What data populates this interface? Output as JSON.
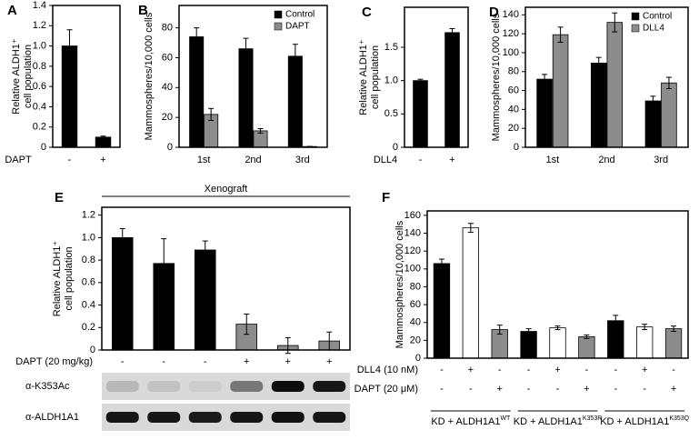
{
  "chart_data": [
    {
      "type": "bar",
      "panel": "A",
      "y_label": [
        "Relative ALDH1⁺",
        "cell population"
      ],
      "x_label": "DAPT",
      "categories": [
        "-",
        "+"
      ],
      "values": [
        1.0,
        0.1
      ],
      "errors": [
        0.16,
        0.01
      ],
      "color": "#000000",
      "ylim": [
        0,
        1.4
      ],
      "yticks": [
        0,
        0.2,
        0.4,
        0.6,
        0.8,
        {
          "value": 1,
          "label": "1.0"
        },
        1.2,
        1.4
      ]
    },
    {
      "type": "bar",
      "panel": "B",
      "y_label": [
        "Mammospheres/10,000 cells"
      ],
      "categories": [
        "1st",
        "2nd",
        "3rd"
      ],
      "series": [
        {
          "name": "Control",
          "color": "#000000",
          "values": [
            74,
            66,
            61
          ],
          "errors": [
            6,
            7,
            8
          ]
        },
        {
          "name": "DAPT",
          "color": "#8c8c8c",
          "values": [
            22,
            11,
            0.5
          ],
          "errors": [
            4,
            1.5,
            0
          ]
        }
      ],
      "ylim": [
        0,
        95
      ],
      "yticks": [
        0,
        20,
        40,
        60,
        80
      ],
      "legend": "top-right"
    },
    {
      "type": "bar",
      "panel": "C",
      "y_label": [
        "Relative ALDH1⁺",
        "cell population"
      ],
      "x_label": "DLL4",
      "categories": [
        "-",
        "+"
      ],
      "values": [
        1.0,
        1.72
      ],
      "errors": [
        0.02,
        0.06
      ],
      "color": "#000000",
      "ylim": [
        0,
        2.1
      ],
      "yticks": [
        0,
        0.5,
        {
          "value": 1,
          "label": "1.0"
        },
        1.5
      ]
    },
    {
      "type": "bar",
      "panel": "D",
      "y_label": [
        "Mammospheres/10,000 cells"
      ],
      "categories": [
        "1st",
        "2nd",
        "3rd"
      ],
      "series": [
        {
          "name": "Control",
          "color": "#000000",
          "values": [
            72,
            89,
            49
          ],
          "errors": [
            5,
            6,
            5
          ]
        },
        {
          "name": "DLL4",
          "color": "#8c8c8c",
          "values": [
            119,
            132,
            68
          ],
          "errors": [
            8,
            10,
            6
          ]
        }
      ],
      "ylim": [
        0,
        148
      ],
      "yticks": [
        0,
        20,
        40,
        60,
        80,
        100,
        120,
        140
      ],
      "legend": "top-left"
    },
    {
      "type": "bar",
      "panel": "E",
      "title": "Xenograft",
      "y_label": [
        "Relative ALDH1⁺",
        "cell population"
      ],
      "values": [
        1.0,
        0.77,
        0.89,
        0.23,
        0.04,
        0.08
      ],
      "errors": [
        0.08,
        0.22,
        0.08,
        0.09,
        0.07,
        0.08
      ],
      "colors": [
        "#000000",
        "#000000",
        "#000000",
        "#8c8c8c",
        "#8c8c8c",
        "#8c8c8c"
      ],
      "rows": [
        {
          "label": "DAPT (20 mg/kg)",
          "values": [
            "-",
            "-",
            "-",
            "+",
            "+",
            "+"
          ]
        }
      ],
      "blot_labels": [
        "α-K353Ac",
        "α-ALDH1A1"
      ],
      "ylim": [
        0,
        1.27
      ],
      "yticks": [
        0,
        0.2,
        0.4,
        0.6,
        0.8,
        {
          "value": 1,
          "label": "1.0"
        },
        1.2
      ]
    },
    {
      "type": "bar",
      "panel": "F",
      "y_label": [
        "Mammospheres/10,000 cells"
      ],
      "values": [
        106,
        146,
        32,
        30,
        34,
        24,
        42,
        35,
        33
      ],
      "errors": [
        5,
        5,
        5,
        3,
        2,
        2,
        6,
        3,
        3
      ],
      "colors": [
        "#000000",
        "#ffffff",
        "#8c8c8c",
        "#000000",
        "#ffffff",
        "#8c8c8c",
        "#000000",
        "#ffffff",
        "#8c8c8c"
      ],
      "rows": [
        {
          "label": "DLL4 (10 nM)",
          "values": [
            "-",
            "+",
            "-",
            "-",
            "+",
            "-",
            "-",
            "+",
            "-"
          ]
        },
        {
          "label": "DAPT (20 μM)",
          "values": [
            "-",
            "-",
            "+",
            "-",
            "-",
            "+",
            "-",
            "-",
            "+"
          ]
        }
      ],
      "groups": [
        {
          "label": "KD + ALDH1A1",
          "sup": "WT"
        },
        {
          "label": "KD + ALDH1A1",
          "sup": "K353R"
        },
        {
          "label": "KD + ALDH1A1",
          "sup": "K353Q"
        }
      ],
      "ylim": [
        0,
        165
      ],
      "yticks": [
        0,
        20,
        40,
        60,
        80,
        100,
        120,
        140,
        160
      ]
    }
  ]
}
